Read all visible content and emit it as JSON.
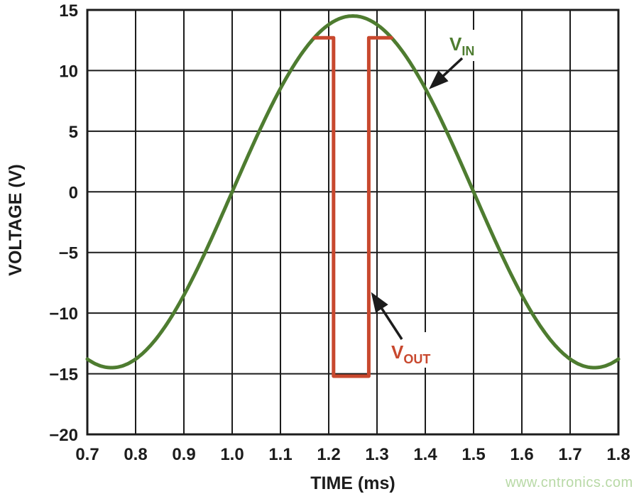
{
  "watermark": {
    "text": "www.cntronics.com",
    "color": "#b8d9a6"
  },
  "chart_data": {
    "type": "line",
    "title": "",
    "xlabel": "TIME (ms)",
    "ylabel": "VOLTAGE (V)",
    "xlim": [
      0.7,
      1.8
    ],
    "ylim": [
      -20,
      15
    ],
    "grid": true,
    "grid_color": "#1c1c1c",
    "x_tick_labels": [
      "0.7",
      "0.8",
      "0.9",
      "1.0",
      "1.1",
      "1.2",
      "1.3",
      "1.4",
      "1.5",
      "1.6",
      "1.7",
      "1.8"
    ],
    "y_tick_values": [
      15,
      10,
      5,
      0,
      -5,
      -10,
      -15,
      -20
    ],
    "y_tick_labels": [
      "15",
      "10",
      "5",
      "0",
      "−5",
      "−10",
      "−15",
      "−20"
    ],
    "legend_position": "arrow-annotations-on-plot",
    "series": [
      {
        "name": "VIN",
        "label_main": "V",
        "label_sub": "IN",
        "color": "#4e7c30",
        "waveform": "sine",
        "amplitude_v": 14.5,
        "period_ms": 1.0,
        "zero_crossing_rising_ms": 1.0,
        "key_points": [
          [
            0.7,
            -13.8
          ],
          [
            0.75,
            -14.5
          ],
          [
            1.0,
            0
          ],
          [
            1.25,
            14.5
          ],
          [
            1.5,
            0
          ],
          [
            1.75,
            -14.5
          ],
          [
            1.8,
            -13.8
          ]
        ]
      },
      {
        "name": "VOUT",
        "label_main": "V",
        "label_sub": "OUT",
        "color": "#c8482e",
        "waveform": "piecewise-step",
        "high_level_v": 12.7,
        "low_level_v": -15.2,
        "points": [
          [
            1.17,
            12.7
          ],
          [
            1.21,
            12.7
          ],
          [
            1.21,
            -15.2
          ],
          [
            1.283,
            -15.2
          ],
          [
            1.283,
            12.7
          ],
          [
            1.33,
            12.7
          ]
        ]
      }
    ]
  }
}
